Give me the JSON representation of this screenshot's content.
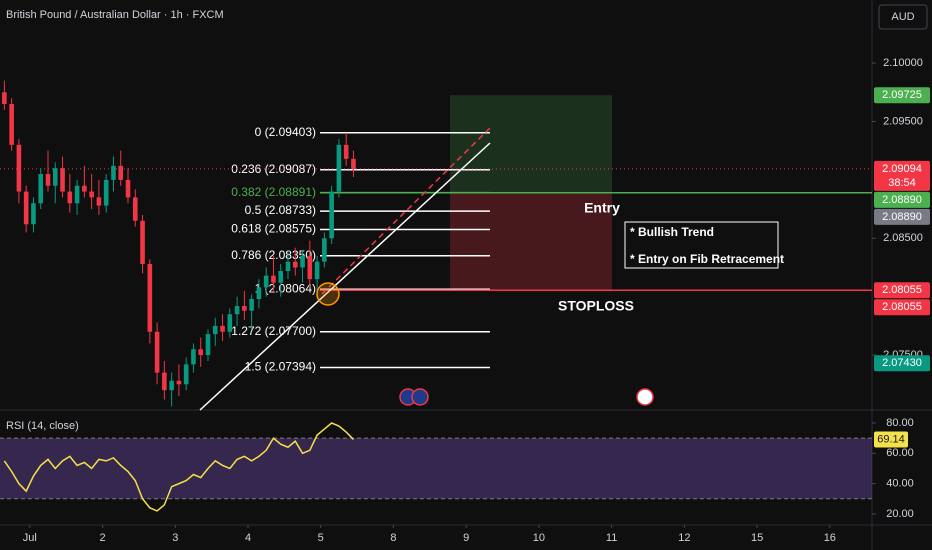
{
  "header": {
    "title": "British Pound / Australian Dollar · 1h · FXCM",
    "currency": "AUD"
  },
  "chart_data": [
    {
      "type": "candlestick",
      "x": [
        -0.35,
        -0.25,
        -0.15,
        -0.05,
        0.05,
        0.15,
        0.25,
        0.35,
        0.45,
        0.55,
        0.65,
        0.75,
        0.85,
        0.95,
        1.05,
        1.15,
        1.25,
        1.35,
        1.45,
        1.55,
        1.65,
        1.75,
        1.85,
        1.95,
        2.05,
        2.15,
        2.25,
        2.35,
        2.45,
        2.55,
        2.65,
        2.75,
        2.85,
        2.95,
        3.05,
        3.15,
        3.25,
        3.35,
        3.45,
        3.55,
        3.65,
        3.75,
        3.85,
        3.95,
        4.05,
        4.15,
        4.25,
        4.35,
        4.45
      ],
      "open": [
        2.0975,
        2.0965,
        2.093,
        2.089,
        2.0862,
        2.088,
        2.0905,
        2.0895,
        2.091,
        2.089,
        2.088,
        2.0895,
        2.089,
        2.0885,
        2.0878,
        2.09,
        2.0912,
        2.09,
        2.0885,
        2.0865,
        2.0828,
        2.077,
        2.0735,
        2.072,
        2.0728,
        2.0725,
        2.0742,
        2.0755,
        2.075,
        2.0768,
        2.0775,
        2.077,
        2.0785,
        2.0792,
        2.0788,
        2.0798,
        2.0808,
        2.0818,
        2.0812,
        2.0822,
        2.083,
        2.0825,
        2.0835,
        2.0815,
        2.083,
        2.085,
        2.089,
        2.093,
        2.0918
      ],
      "high": [
        2.0985,
        2.097,
        2.0935,
        2.0895,
        2.0885,
        2.091,
        2.0925,
        2.0915,
        2.092,
        2.0905,
        2.09,
        2.0912,
        2.0905,
        2.09,
        2.0905,
        2.092,
        2.0925,
        2.091,
        2.0892,
        2.087,
        2.0832,
        2.0778,
        2.0745,
        2.0735,
        2.0742,
        2.0748,
        2.076,
        2.0765,
        2.0772,
        2.0782,
        2.0785,
        2.079,
        2.08,
        2.0805,
        2.0802,
        2.0815,
        2.0825,
        2.0835,
        2.0828,
        2.0838,
        2.0842,
        2.084,
        2.0848,
        2.0835,
        2.0855,
        2.0895,
        2.0935,
        2.09403,
        2.0925
      ],
      "low": [
        2.096,
        2.0925,
        2.088,
        2.0855,
        2.0855,
        2.0875,
        2.089,
        2.088,
        2.0885,
        2.0872,
        2.087,
        2.0885,
        2.0875,
        2.087,
        2.0872,
        2.089,
        2.0895,
        2.088,
        2.086,
        2.082,
        2.076,
        2.0725,
        2.0712,
        2.0706,
        2.0715,
        2.072,
        2.0735,
        2.074,
        2.0745,
        2.0758,
        2.0762,
        2.0765,
        2.0775,
        2.078,
        2.0772,
        2.079,
        2.08,
        2.0805,
        2.08,
        2.0815,
        2.0818,
        2.0812,
        2.0808,
        2.0802,
        2.0825,
        2.0845,
        2.0885,
        2.0912,
        2.09025
      ],
      "close": [
        2.0965,
        2.093,
        2.089,
        2.0862,
        2.088,
        2.0905,
        2.0895,
        2.091,
        2.089,
        2.088,
        2.0895,
        2.089,
        2.0885,
        2.0878,
        2.09,
        2.0912,
        2.09,
        2.0885,
        2.0865,
        2.0828,
        2.077,
        2.0735,
        2.072,
        2.0728,
        2.0725,
        2.0742,
        2.0755,
        2.075,
        2.0768,
        2.0775,
        2.077,
        2.0785,
        2.0792,
        2.0788,
        2.0798,
        2.0808,
        2.0818,
        2.0812,
        2.0822,
        2.083,
        2.0825,
        2.0835,
        2.0815,
        2.083,
        2.085,
        2.089,
        2.093,
        2.0918,
        2.09094
      ],
      "up_color": "#089981",
      "down_color": "#f23645",
      "xlim": [
        -0.41,
        11.58
      ],
      "xticks": [
        {
          "value": 0,
          "label": "Jul"
        },
        {
          "value": 1,
          "label": "2"
        },
        {
          "value": 2,
          "label": "3"
        },
        {
          "value": 3,
          "label": "4"
        },
        {
          "value": 4,
          "label": "5"
        },
        {
          "value": 5,
          "label": "8"
        },
        {
          "value": 6,
          "label": "9"
        },
        {
          "value": 7,
          "label": "10"
        },
        {
          "value": 8,
          "label": "11"
        },
        {
          "value": 9,
          "label": "12"
        },
        {
          "value": 10,
          "label": "15"
        },
        {
          "value": 11,
          "label": "16"
        }
      ],
      "ylim": [
        2.0703,
        2.1054
      ],
      "yticks": [
        {
          "value": 2.1,
          "label": "2.10000"
        },
        {
          "value": 2.095,
          "label": "2.09500"
        },
        {
          "value": 2.085,
          "label": "2.08500"
        },
        {
          "value": 2.075,
          "label": "2.07500"
        }
      ],
      "fib_levels": [
        {
          "label": "0 (2.09403)",
          "price": 2.09403,
          "color": "#ffffff"
        },
        {
          "label": "0.236 (2.09087)",
          "price": 2.09087,
          "color": "#ffffff"
        },
        {
          "label": "0.382 (2.08891)",
          "price": 2.08891,
          "color": "#4caf50"
        },
        {
          "label": "0.5 (2.08733)",
          "price": 2.08733,
          "color": "#ffffff"
        },
        {
          "label": "0.618 (2.08575)",
          "price": 2.08575,
          "color": "#ffffff"
        },
        {
          "label": "0.786 (2.08350)",
          "price": 2.0835,
          "color": "#ffffff"
        },
        {
          "label": "1 (2.08064)",
          "price": 2.08064,
          "color": "#ffffff"
        },
        {
          "label": "1.272 (2.07700)",
          "price": 2.077,
          "color": "#ffffff"
        },
        {
          "label": "1.5 (2.07394)",
          "price": 2.07394,
          "color": "#ffffff"
        }
      ],
      "axis_markers": [
        {
          "value": 2.09725,
          "label": "2.09725",
          "color": "#4caf50"
        },
        {
          "value": 2.09094,
          "label": "2.09094",
          "color": "#f23645"
        },
        {
          "value": 2.0889,
          "label": "2.08890",
          "color": "#4caf50"
        },
        {
          "value": 2.0889,
          "label": "2.08890",
          "color": "#787b86"
        },
        {
          "value": 2.08055,
          "label": "2.08055",
          "color": "#f23645"
        },
        {
          "value": 2.08055,
          "label": "2.08055",
          "color": "#f23645"
        },
        {
          "value": 2.0743,
          "label": "2.07430",
          "color": "#089981"
        }
      ],
      "countdown": "38:54",
      "annotations": {
        "entry": "Entry",
        "stoploss": "STOPLOSS",
        "notes": [
          "* Bullish Trend",
          "* Entry on Fib Retracement"
        ]
      }
    },
    {
      "type": "line",
      "title": "RSI (14, close)",
      "x": [
        -0.35,
        -0.25,
        -0.15,
        -0.05,
        0.05,
        0.15,
        0.25,
        0.35,
        0.45,
        0.55,
        0.65,
        0.75,
        0.85,
        0.95,
        1.05,
        1.15,
        1.25,
        1.35,
        1.45,
        1.55,
        1.65,
        1.75,
        1.85,
        1.95,
        2.05,
        2.15,
        2.25,
        2.35,
        2.45,
        2.55,
        2.65,
        2.75,
        2.85,
        2.95,
        3.05,
        3.15,
        3.25,
        3.35,
        3.45,
        3.55,
        3.65,
        3.75,
        3.85,
        3.95,
        4.05,
        4.15,
        4.25,
        4.35,
        4.45
      ],
      "values": [
        55,
        48,
        40,
        35,
        45,
        52,
        56,
        50,
        55,
        58,
        52,
        54,
        50,
        56,
        55,
        57,
        52,
        48,
        42,
        30,
        24,
        22,
        26,
        38,
        40,
        42,
        46,
        44,
        50,
        55,
        52,
        50,
        56,
        58,
        55,
        58,
        62,
        70,
        66,
        64,
        68,
        60,
        62,
        72,
        76,
        80,
        78,
        74,
        69.14
      ],
      "color": "#f5e14a",
      "ylim": [
        12.7,
        86.6
      ],
      "yticks": [
        {
          "value": 80,
          "label": "80.00"
        },
        {
          "value": 60,
          "label": "60.00"
        },
        {
          "value": 40,
          "label": "40.00"
        },
        {
          "value": 20,
          "label": "20.00"
        }
      ],
      "band": [
        30,
        70
      ],
      "band_color": "#7e57c2"
    }
  ]
}
